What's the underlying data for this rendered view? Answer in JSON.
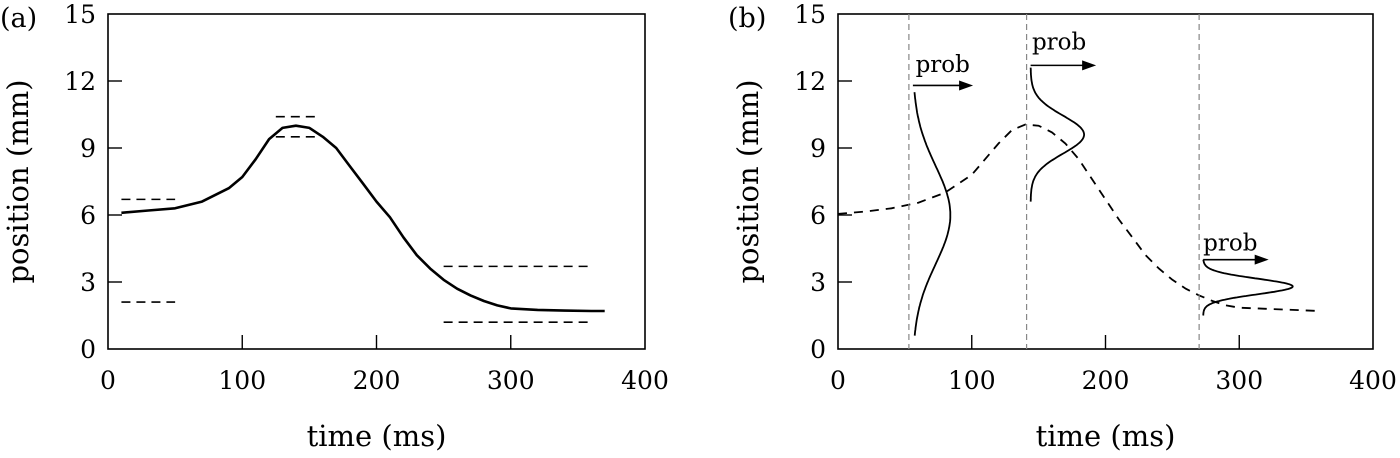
{
  "chart_data": [
    {
      "type": "line",
      "panel_label": "(a)",
      "title": "",
      "xlabel": "time (ms)",
      "ylabel": "position (mm)",
      "xlim": [
        0,
        400
      ],
      "ylim": [
        0,
        15
      ],
      "xticks": [
        0,
        100,
        200,
        300,
        400
      ],
      "yticks": [
        0,
        3,
        6,
        9,
        12,
        15
      ],
      "grid": false,
      "series": [
        {
          "style": "solid",
          "x": [
            10,
            30,
            50,
            70,
            90,
            100,
            110,
            120,
            130,
            140,
            150,
            160,
            170,
            180,
            190,
            200,
            210,
            220,
            230,
            240,
            250,
            260,
            270,
            280,
            290,
            300,
            320,
            340,
            360,
            370
          ],
          "y": [
            6.1,
            6.2,
            6.3,
            6.6,
            7.2,
            7.7,
            8.5,
            9.4,
            9.9,
            10.0,
            9.9,
            9.5,
            9.0,
            8.2,
            7.4,
            6.6,
            5.9,
            5.0,
            4.2,
            3.6,
            3.1,
            2.7,
            2.4,
            2.15,
            1.95,
            1.82,
            1.75,
            1.72,
            1.7,
            1.7
          ]
        }
      ],
      "dashed_segments": [
        {
          "x": [
            10,
            50
          ],
          "y": 6.7
        },
        {
          "x": [
            10,
            50
          ],
          "y": 2.1
        },
        {
          "x": [
            125,
            155
          ],
          "y": 10.4
        },
        {
          "x": [
            125,
            155
          ],
          "y": 9.5
        },
        {
          "x": [
            250,
            360
          ],
          "y": 3.7
        },
        {
          "x": [
            250,
            360
          ],
          "y": 1.2
        }
      ]
    },
    {
      "type": "line",
      "panel_label": "(b)",
      "title": "",
      "xlabel": "time (ms)",
      "ylabel": "position (mm)",
      "xlim": [
        0,
        400
      ],
      "ylim": [
        0,
        15
      ],
      "xticks": [
        0,
        100,
        200,
        300,
        400
      ],
      "yticks": [
        0,
        3,
        6,
        9,
        12,
        15
      ],
      "grid": false,
      "series": [
        {
          "style": "dashed",
          "x": [
            0,
            20,
            40,
            60,
            80,
            100,
            110,
            120,
            130,
            140,
            150,
            160,
            170,
            180,
            190,
            200,
            210,
            220,
            230,
            240,
            250,
            260,
            270,
            280,
            290,
            300,
            320,
            340,
            360
          ],
          "y": [
            6.05,
            6.15,
            6.3,
            6.55,
            7.0,
            7.8,
            8.5,
            9.2,
            9.8,
            10.05,
            10.0,
            9.7,
            9.2,
            8.5,
            7.6,
            6.7,
            5.8,
            5.0,
            4.2,
            3.6,
            3.1,
            2.7,
            2.4,
            2.15,
            1.95,
            1.85,
            1.8,
            1.75,
            1.7
          ]
        }
      ],
      "vertical_markers_x": [
        53,
        141,
        270
      ],
      "distributions": [
        {
          "base_x": 56,
          "mean": 6.0,
          "sigma": 2.2,
          "ymin": 0.6,
          "ymax": 11.5,
          "peak_width_ms": 28,
          "label": "prob",
          "label_x": 58,
          "label_y": 12.4,
          "arrow_x": [
            56,
            101
          ],
          "arrow_y": 11.8
        },
        {
          "base_x": 144,
          "mean": 9.6,
          "sigma": 0.85,
          "ymin": 6.6,
          "ymax": 12.6,
          "peak_width_ms": 40,
          "label": "prob",
          "label_x": 145,
          "label_y": 13.4,
          "arrow_x": [
            144,
            193
          ],
          "arrow_y": 12.7
        },
        {
          "base_x": 273,
          "mean": 2.8,
          "sigma": 0.35,
          "ymin": 1.5,
          "ymax": 4.0,
          "peak_width_ms": 67,
          "label": "prob",
          "label_x": 273,
          "label_y": 4.4,
          "arrow_x": [
            273,
            322
          ],
          "arrow_y": 4.0
        }
      ]
    }
  ]
}
